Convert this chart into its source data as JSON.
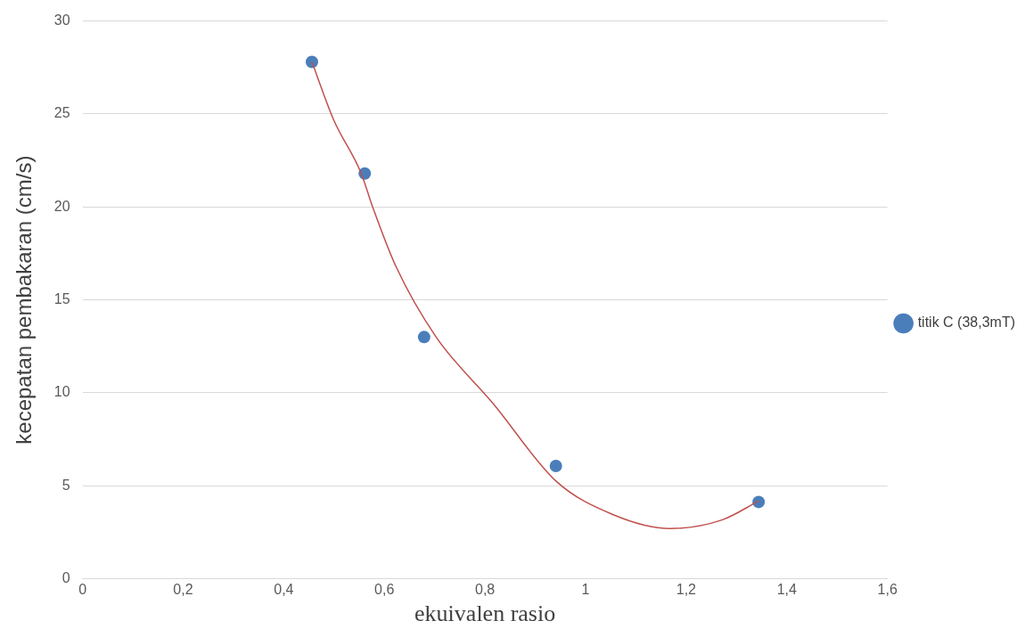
{
  "chart_data": {
    "type": "scatter",
    "xlabel": "ekuivalen rasio",
    "ylabel": "kecepatan pembakaran (cm/s)",
    "xlim": [
      0,
      1.6
    ],
    "xticks": [
      0,
      {
        "value": 0.2,
        "label": "0,2"
      },
      {
        "value": 0.4,
        "label": "0,4"
      },
      {
        "value": 0.6,
        "label": "0,6"
      },
      {
        "value": 0.8,
        "label": "0,8"
      },
      1,
      {
        "value": 1.2,
        "label": "1,2"
      },
      {
        "value": 1.4,
        "label": "1,4"
      },
      {
        "value": 1.6,
        "label": "1,6"
      }
    ],
    "ylim": [
      0,
      30
    ],
    "yticks": [
      0,
      5,
      10,
      15,
      20,
      25,
      30
    ],
    "grid": "y",
    "legend": "right",
    "marker": "circle",
    "series": [
      {
        "name": "titik C (38,3mT)",
        "color": "#4a7ebb",
        "x": [
          0.456,
          0.561,
          0.679,
          0.941,
          1.344
        ],
        "values": [
          27.8,
          21.8,
          13.0,
          6.07,
          4.13
        ]
      },
      {
        "type": "line",
        "color": "#c0504d",
        "marker": "none",
        "x": [
          0.456,
          0.499,
          0.554,
          0.576,
          0.623,
          0.703,
          0.817,
          0.941,
          1.053,
          1.168,
          1.271,
          1.344
        ],
        "values": [
          27.8,
          24.7,
          21.8,
          20.05,
          16.8,
          13.0,
          9.4,
          5.26,
          3.47,
          2.7,
          3.16,
          4.18
        ]
      }
    ]
  }
}
